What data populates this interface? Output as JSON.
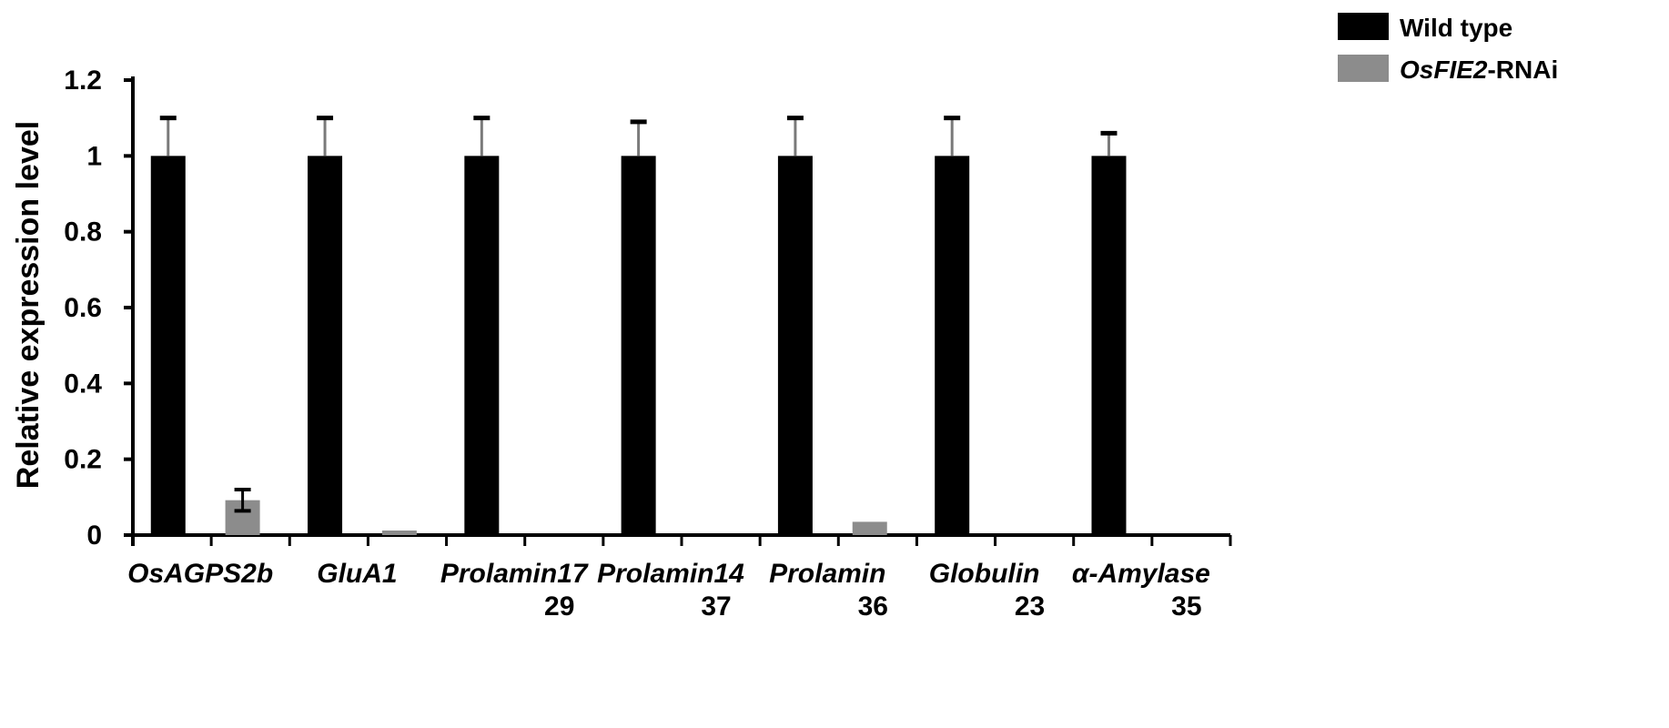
{
  "chart_data": {
    "type": "bar",
    "ylabel": "Relative expression level",
    "ylim": [
      0,
      1.2
    ],
    "yticks": [
      "0",
      "0.2",
      "0.4",
      "0.6",
      "0.8",
      "1",
      "1.2"
    ],
    "grid": false,
    "legend_position": "top-right",
    "categories": [
      {
        "line1": "OsAGPS2b",
        "line2": ""
      },
      {
        "line1": "GluA1",
        "line2": ""
      },
      {
        "line1": "Prolamin17",
        "line2": "29"
      },
      {
        "line1": "Prolamin14",
        "line2": "37"
      },
      {
        "line1": "Prolamin",
        "line2": "36"
      },
      {
        "line1": "Globulin",
        "line2": "23"
      },
      {
        "line1": "α-Amylase",
        "line2": "35"
      }
    ],
    "series": [
      {
        "name": "Wild type",
        "color": "#000000",
        "values": [
          1,
          1,
          1,
          1,
          1,
          1,
          1
        ],
        "errors": [
          0.1,
          0.1,
          0.1,
          0.09,
          0.1,
          0.1,
          0.06
        ]
      },
      {
        "name_parts": [
          {
            "text": "OsFIE2",
            "italic": true
          },
          {
            "text": "-RNAi",
            "italic": false
          }
        ],
        "color": "#8c8c8c",
        "values": [
          0.092,
          0.012,
          0,
          0,
          0.035,
          0,
          0
        ],
        "errors": [
          0.028,
          0,
          0,
          0,
          0,
          0,
          0
        ]
      }
    ]
  }
}
